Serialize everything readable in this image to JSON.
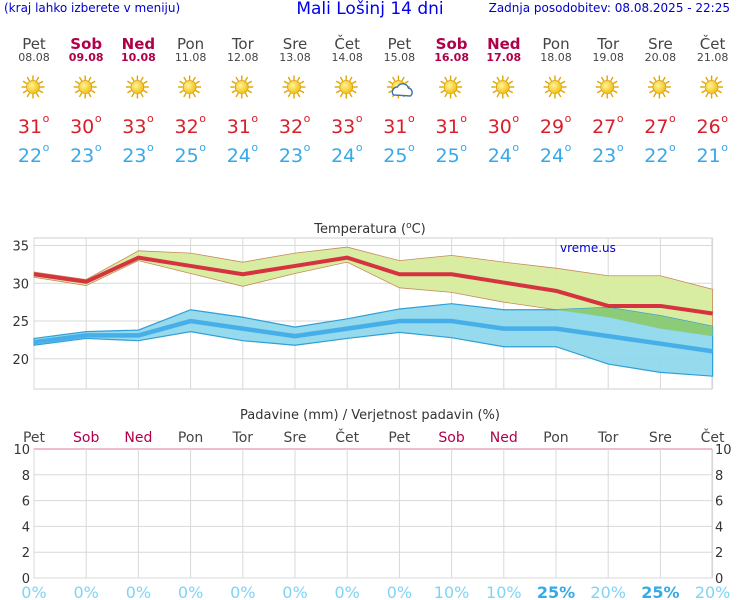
{
  "header": {
    "menu_hint": "(kraj lahko izberete v meniju)",
    "title": "Mali Lošinj 14 dni",
    "updated": "Zadnja posodobitev: 08.08.2025 - 22:25"
  },
  "days": [
    {
      "name": "Pet",
      "date": "08.08",
      "weekend": false,
      "icon": "sun-icon",
      "max": "31",
      "min": "22"
    },
    {
      "name": "Sob",
      "date": "09.08",
      "weekend": true,
      "icon": "sun-icon",
      "max": "30",
      "min": "23"
    },
    {
      "name": "Ned",
      "date": "10.08",
      "weekend": true,
      "icon": "sun-icon",
      "max": "33",
      "min": "23"
    },
    {
      "name": "Pon",
      "date": "11.08",
      "weekend": false,
      "icon": "sun-icon",
      "max": "32",
      "min": "25"
    },
    {
      "name": "Tor",
      "date": "12.08",
      "weekend": false,
      "icon": "sun-icon",
      "max": "31",
      "min": "24"
    },
    {
      "name": "Sre",
      "date": "13.08",
      "weekend": false,
      "icon": "sun-icon",
      "max": "32",
      "min": "23"
    },
    {
      "name": "Čet",
      "date": "14.08",
      "weekend": false,
      "icon": "sun-icon",
      "max": "33",
      "min": "24"
    },
    {
      "name": "Pet",
      "date": "15.08",
      "weekend": false,
      "icon": "sun-cloud-icon",
      "max": "31",
      "min": "25"
    },
    {
      "name": "Sob",
      "date": "16.08",
      "weekend": true,
      "icon": "sun-icon",
      "max": "31",
      "min": "25"
    },
    {
      "name": "Ned",
      "date": "17.08",
      "weekend": true,
      "icon": "sun-icon",
      "max": "30",
      "min": "24"
    },
    {
      "name": "Pon",
      "date": "18.08",
      "weekend": false,
      "icon": "sun-icon",
      "max": "29",
      "min": "24"
    },
    {
      "name": "Tor",
      "date": "19.08",
      "weekend": false,
      "icon": "sun-icon",
      "max": "27",
      "min": "23"
    },
    {
      "name": "Sre",
      "date": "20.08",
      "weekend": false,
      "icon": "sun-icon",
      "max": "27",
      "min": "22"
    },
    {
      "name": "Čet",
      "date": "21.08",
      "weekend": false,
      "icon": "sun-icon",
      "max": "26",
      "min": "21"
    }
  ],
  "degree_symbol": "o",
  "colors": {
    "weekday": "#444444",
    "weekend": "#b0004a",
    "max_text": "#d8202a",
    "min_text": "#36a9e8",
    "max_line": "#d63340",
    "min_line": "#46aee8",
    "max_band": "#d6ec9c",
    "min_band": "#8fd8ec",
    "overlap": "#8ccc78",
    "grid": "#d8d8d8",
    "precip_pct": "#7fd4f6",
    "precip_pct_bold": "#36a9e8"
  },
  "chart_data": [
    {
      "type": "line",
      "title": "Temperatura (",
      "title_sup": "o",
      "title_end": "C)",
      "watermark": "vreme.us",
      "categories": [
        "Pet",
        "Sob",
        "Ned",
        "Pon",
        "Tor",
        "Sre",
        "Čet",
        "Pet",
        "Sob",
        "Ned",
        "Pon",
        "Tor",
        "Sre",
        "Čet"
      ],
      "ylim": [
        16,
        36
      ],
      "yticks": [
        "20",
        "25",
        "30",
        "35"
      ],
      "series": [
        {
          "role": "max",
          "values": [
            31.2,
            30.2,
            33.4,
            32.3,
            31.2,
            32.3,
            33.4,
            31.2,
            31.2,
            30.1,
            29.0,
            27.0,
            27.0,
            26.0
          ]
        },
        {
          "role": "min",
          "values": [
            22.2,
            23.1,
            23.1,
            25.0,
            24.0,
            23.0,
            24.0,
            25.0,
            25.0,
            24.0,
            24.0,
            23.0,
            22.0,
            21.0
          ]
        }
      ],
      "max_band": {
        "upper": [
          31.5,
          30.5,
          34.3,
          34.0,
          32.8,
          34.0,
          34.8,
          33.0,
          33.7,
          32.8,
          32.0,
          31.0,
          31.0,
          29.2
        ],
        "lower": [
          30.8,
          29.7,
          33.0,
          31.3,
          29.6,
          31.3,
          32.8,
          29.4,
          28.8,
          27.5,
          26.5,
          25.5,
          24.0,
          23.0
        ]
      },
      "min_band": {
        "upper": [
          22.7,
          23.6,
          23.8,
          26.5,
          25.5,
          24.2,
          25.3,
          26.6,
          27.3,
          26.5,
          26.5,
          26.8,
          25.7,
          24.3
        ],
        "lower": [
          21.8,
          22.7,
          22.4,
          23.6,
          22.4,
          21.8,
          22.7,
          23.5,
          22.8,
          21.6,
          21.6,
          19.3,
          18.2,
          17.7
        ]
      }
    },
    {
      "type": "bar",
      "title": "Padavine (mm) / Verjetnost padavin (%)",
      "categories": [
        "Pet",
        "Sob",
        "Ned",
        "Pon",
        "Tor",
        "Sre",
        "Čet",
        "Pet",
        "Sob",
        "Ned",
        "Pon",
        "Tor",
        "Sre",
        "Čet"
      ],
      "ylim": [
        0,
        10
      ],
      "yticks": [
        "0",
        "2",
        "4",
        "6",
        "8",
        "10"
      ],
      "values": [
        0,
        0,
        0,
        0,
        0,
        0,
        0,
        0,
        0,
        0,
        0,
        0,
        0,
        0
      ],
      "probability": [
        "0%",
        "0%",
        "0%",
        "0%",
        "0%",
        "0%",
        "0%",
        "0%",
        "10%",
        "10%",
        "25%",
        "20%",
        "25%",
        "20%"
      ],
      "probability_bold": [
        false,
        false,
        false,
        false,
        false,
        false,
        false,
        false,
        false,
        false,
        true,
        false,
        true,
        false
      ]
    }
  ]
}
